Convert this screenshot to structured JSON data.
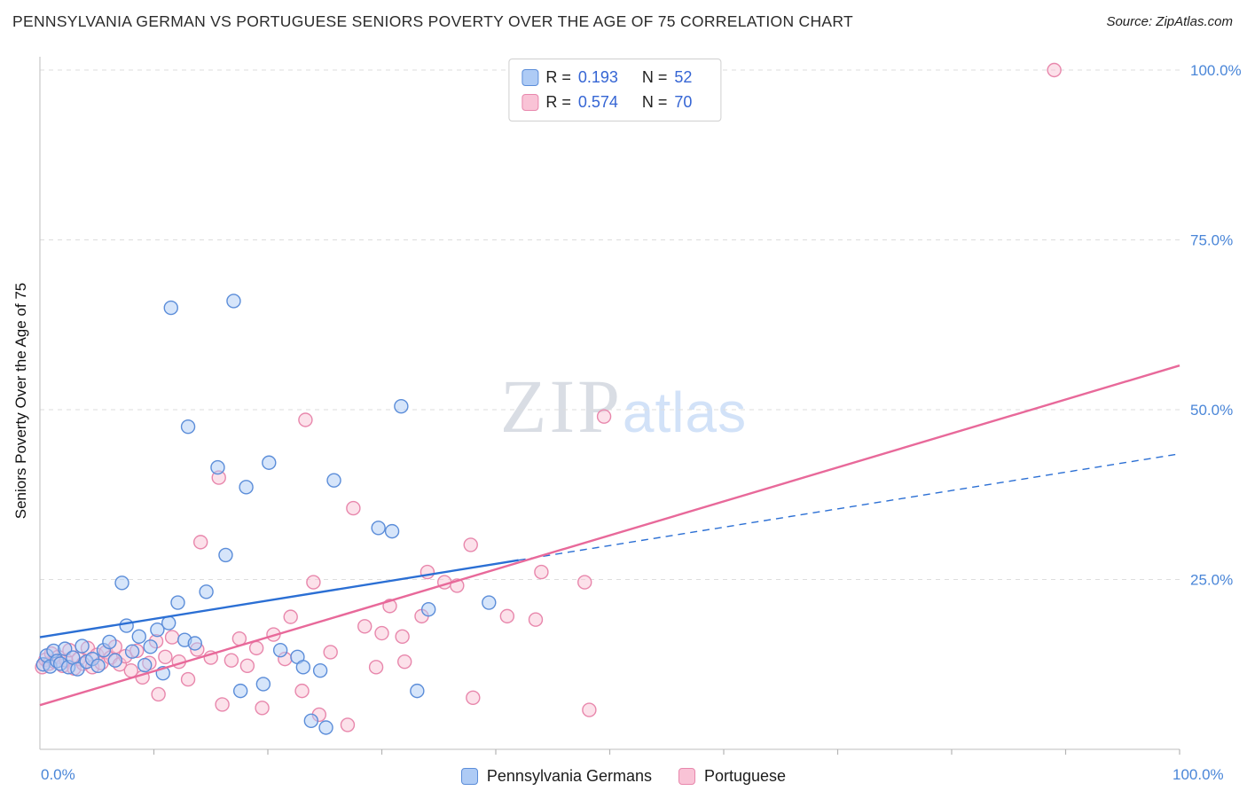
{
  "header": {
    "title": "PENNSYLVANIA GERMAN VS PORTUGUESE SENIORS POVERTY OVER THE AGE OF 75 CORRELATION CHART",
    "source": "Source: ZipAtlas.com"
  },
  "legend": {
    "r_label": "R =",
    "n_label": "N ="
  },
  "watermark": {
    "part1": "ZIP",
    "part2": "atlas"
  },
  "chart_data": {
    "type": "scatter",
    "title": "Pennsylvania German vs Portuguese Seniors Poverty Over the Age of 75",
    "ylabel": "Seniors Poverty Over the Age of 75",
    "xlim": [
      0,
      100
    ],
    "ylim": [
      0,
      100
    ],
    "grid": "horizontal-dashed",
    "axis_color": "#4a86d8",
    "y_ticks": [
      {
        "value": 100,
        "label": "100.0%"
      },
      {
        "value": 75,
        "label": "75.0%"
      },
      {
        "value": 50,
        "label": "50.0%"
      },
      {
        "value": 25,
        "label": "25.0%"
      }
    ],
    "x_axis_labels": {
      "min": "0.0%",
      "max": "100.0%"
    },
    "series": [
      {
        "name": "Pennsylvania Germans",
        "R": "0.193",
        "N": 52,
        "color": "#5b8dd9",
        "fill": "#aecbf5",
        "points": [
          [
            0.3,
            12.5
          ],
          [
            0.6,
            13.8
          ],
          [
            0.9,
            12.2
          ],
          [
            1.2,
            14.5
          ],
          [
            1.5,
            13.0
          ],
          [
            1.8,
            12.6
          ],
          [
            2.2,
            14.8
          ],
          [
            2.5,
            12.1
          ],
          [
            2.9,
            13.5
          ],
          [
            3.3,
            11.8
          ],
          [
            3.7,
            15.2
          ],
          [
            4.1,
            12.9
          ],
          [
            4.6,
            13.3
          ],
          [
            5.1,
            12.3
          ],
          [
            5.6,
            14.6
          ],
          [
            6.1,
            15.8
          ],
          [
            6.6,
            13.1
          ],
          [
            7.2,
            24.5
          ],
          [
            7.6,
            18.2
          ],
          [
            8.1,
            14.4
          ],
          [
            8.7,
            16.6
          ],
          [
            9.2,
            12.4
          ],
          [
            9.7,
            15.1
          ],
          [
            10.3,
            17.6
          ],
          [
            10.8,
            11.2
          ],
          [
            11.3,
            18.6
          ],
          [
            11.5,
            65.0
          ],
          [
            12.1,
            21.6
          ],
          [
            12.7,
            16.1
          ],
          [
            13.0,
            47.5
          ],
          [
            13.6,
            15.6
          ],
          [
            14.6,
            23.2
          ],
          [
            15.6,
            41.5
          ],
          [
            16.3,
            28.6
          ],
          [
            17.0,
            66.0
          ],
          [
            17.6,
            8.6
          ],
          [
            18.1,
            38.6
          ],
          [
            19.6,
            9.6
          ],
          [
            20.1,
            42.2
          ],
          [
            21.1,
            14.6
          ],
          [
            22.6,
            13.6
          ],
          [
            23.1,
            12.1
          ],
          [
            23.8,
            4.2
          ],
          [
            24.6,
            11.6
          ],
          [
            25.1,
            3.2
          ],
          [
            25.8,
            39.6
          ],
          [
            29.7,
            32.6
          ],
          [
            30.9,
            32.1
          ],
          [
            31.7,
            50.5
          ],
          [
            33.1,
            8.6
          ],
          [
            34.1,
            20.6
          ],
          [
            39.4,
            21.6
          ]
        ]
      },
      {
        "name": "Portuguese",
        "R": "0.574",
        "N": 70,
        "color": "#e887ac",
        "fill": "#f9c3d6",
        "points": [
          [
            0.2,
            12.1
          ],
          [
            0.5,
            13.2
          ],
          [
            0.8,
            12.6
          ],
          [
            1.0,
            14.1
          ],
          [
            1.3,
            12.9
          ],
          [
            1.6,
            13.6
          ],
          [
            2.0,
            12.3
          ],
          [
            2.3,
            13.1
          ],
          [
            2.6,
            14.6
          ],
          [
            3.0,
            11.9
          ],
          [
            3.4,
            13.3
          ],
          [
            3.8,
            12.6
          ],
          [
            4.2,
            14.9
          ],
          [
            4.6,
            12.1
          ],
          [
            5.0,
            13.9
          ],
          [
            5.4,
            12.7
          ],
          [
            5.8,
            14.3
          ],
          [
            6.2,
            13.5
          ],
          [
            6.6,
            15.1
          ],
          [
            7.0,
            12.5
          ],
          [
            7.5,
            13.7
          ],
          [
            8.0,
            11.6
          ],
          [
            8.5,
            14.5
          ],
          [
            9.0,
            10.6
          ],
          [
            9.6,
            12.7
          ],
          [
            10.2,
            15.9
          ],
          [
            10.4,
            8.1
          ],
          [
            11.0,
            13.6
          ],
          [
            11.6,
            16.5
          ],
          [
            12.2,
            12.9
          ],
          [
            13.0,
            10.3
          ],
          [
            13.8,
            14.7
          ],
          [
            14.1,
            30.5
          ],
          [
            15.0,
            13.5
          ],
          [
            15.7,
            40.0
          ],
          [
            16.0,
            6.6
          ],
          [
            16.8,
            13.1
          ],
          [
            17.5,
            16.3
          ],
          [
            18.2,
            12.3
          ],
          [
            19.0,
            14.9
          ],
          [
            19.5,
            6.1
          ],
          [
            20.5,
            16.9
          ],
          [
            21.5,
            13.3
          ],
          [
            22.0,
            19.5
          ],
          [
            23.0,
            8.6
          ],
          [
            23.3,
            48.5
          ],
          [
            24.0,
            24.6
          ],
          [
            24.5,
            5.1
          ],
          [
            25.5,
            14.3
          ],
          [
            48.2,
            5.8
          ],
          [
            27.0,
            3.6
          ],
          [
            27.5,
            35.5
          ],
          [
            28.5,
            18.1
          ],
          [
            29.5,
            12.1
          ],
          [
            30.0,
            17.1
          ],
          [
            30.7,
            21.1
          ],
          [
            31.8,
            16.6
          ],
          [
            32.0,
            12.9
          ],
          [
            33.5,
            19.6
          ],
          [
            34.0,
            26.1
          ],
          [
            35.5,
            24.6
          ],
          [
            36.6,
            24.1
          ],
          [
            37.8,
            30.1
          ],
          [
            38.0,
            7.6
          ],
          [
            41.0,
            19.6
          ],
          [
            43.5,
            19.1
          ],
          [
            44.0,
            26.1
          ],
          [
            47.8,
            24.6
          ],
          [
            49.5,
            49.0
          ],
          [
            89.0,
            100.0
          ]
        ]
      }
    ],
    "trend_lines": [
      {
        "series": "Pennsylvania Germans",
        "color": "#2b6fd4",
        "start": [
          0,
          16.5
        ],
        "solid_until": 42,
        "end": [
          100,
          43.5
        ],
        "style": "solid-then-dashed"
      },
      {
        "series": "Portuguese",
        "color": "#e8699a",
        "start": [
          0,
          6.5
        ],
        "end": [
          100,
          56.5
        ],
        "style": "solid"
      }
    ]
  }
}
